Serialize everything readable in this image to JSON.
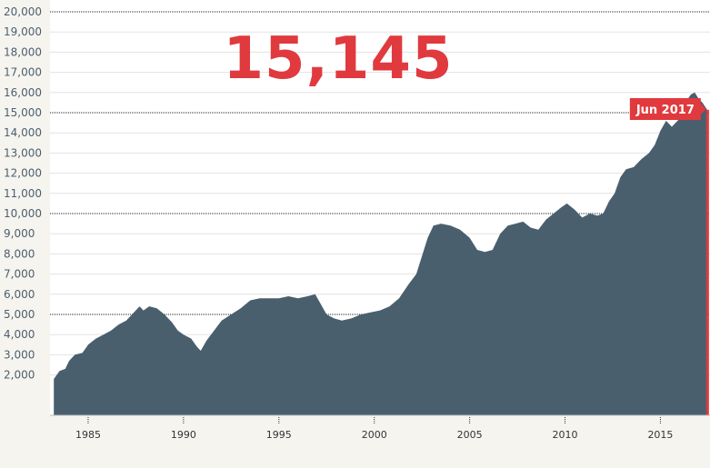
{
  "chart_data": {
    "type": "area",
    "headline_value": "15,145",
    "callout_label": "Jun 2017",
    "ylim": [
      0,
      20000
    ],
    "xlim": [
      1983,
      2017.6
    ],
    "y_ticks": [
      2000,
      3000,
      4000,
      5000,
      6000,
      7000,
      8000,
      9000,
      10000,
      11000,
      12000,
      13000,
      14000,
      15000,
      16000,
      17000,
      18000,
      19000,
      20000
    ],
    "y_tick_labels": [
      "2,000",
      "3,000",
      "4,000",
      "5,000",
      "6,000",
      "7,000",
      "8,000",
      "9,000",
      "10,000",
      "11,000",
      "12,000",
      "13,000",
      "14,000",
      "15,000",
      "16,000",
      "17,000",
      "18,000",
      "19,000",
      "20,000"
    ],
    "major_gridlines": [
      5000,
      10000,
      15000,
      20000
    ],
    "x_ticks": [
      1985,
      1990,
      1995,
      2000,
      2005,
      2010,
      2015
    ],
    "x_tick_labels": [
      "1985",
      "1990",
      "1995",
      "2000",
      "2005",
      "2010",
      "2015"
    ],
    "points": [
      [
        1983.2,
        1800
      ],
      [
        1983.5,
        2200
      ],
      [
        1983.8,
        2300
      ],
      [
        1984.0,
        2700
      ],
      [
        1984.3,
        3000
      ],
      [
        1984.7,
        3100
      ],
      [
        1985.0,
        3500
      ],
      [
        1985.4,
        3800
      ],
      [
        1985.8,
        4000
      ],
      [
        1986.2,
        4200
      ],
      [
        1986.6,
        4500
      ],
      [
        1987.0,
        4700
      ],
      [
        1987.4,
        5100
      ],
      [
        1987.7,
        5400
      ],
      [
        1987.9,
        5200
      ],
      [
        1988.2,
        5400
      ],
      [
        1988.6,
        5300
      ],
      [
        1989.0,
        5000
      ],
      [
        1989.4,
        4600
      ],
      [
        1989.7,
        4200
      ],
      [
        1990.0,
        4000
      ],
      [
        1990.4,
        3800
      ],
      [
        1990.7,
        3400
      ],
      [
        1990.9,
        3200
      ],
      [
        1991.2,
        3700
      ],
      [
        1991.6,
        4200
      ],
      [
        1992.0,
        4700
      ],
      [
        1992.5,
        5000
      ],
      [
        1993.0,
        5300
      ],
      [
        1993.5,
        5700
      ],
      [
        1994.0,
        5800
      ],
      [
        1994.5,
        5800
      ],
      [
        1995.0,
        5800
      ],
      [
        1995.5,
        5900
      ],
      [
        1996.0,
        5800
      ],
      [
        1996.5,
        5900
      ],
      [
        1996.9,
        6000
      ],
      [
        1997.2,
        5500
      ],
      [
        1997.5,
        5000
      ],
      [
        1997.9,
        4800
      ],
      [
        1998.3,
        4700
      ],
      [
        1998.8,
        4800
      ],
      [
        1999.3,
        5000
      ],
      [
        1999.8,
        5100
      ],
      [
        2000.3,
        5200
      ],
      [
        2000.8,
        5400
      ],
      [
        2001.3,
        5800
      ],
      [
        2001.8,
        6500
      ],
      [
        2002.2,
        7000
      ],
      [
        2002.5,
        7900
      ],
      [
        2002.8,
        8800
      ],
      [
        2003.1,
        9400
      ],
      [
        2003.5,
        9500
      ],
      [
        2004.0,
        9400
      ],
      [
        2004.5,
        9200
      ],
      [
        2005.0,
        8800
      ],
      [
        2005.4,
        8200
      ],
      [
        2005.8,
        8100
      ],
      [
        2006.2,
        8200
      ],
      [
        2006.6,
        9000
      ],
      [
        2007.0,
        9400
      ],
      [
        2007.4,
        9500
      ],
      [
        2007.8,
        9600
      ],
      [
        2008.2,
        9300
      ],
      [
        2008.6,
        9200
      ],
      [
        2009.0,
        9700
      ],
      [
        2009.4,
        10000
      ],
      [
        2009.8,
        10300
      ],
      [
        2010.1,
        10500
      ],
      [
        2010.5,
        10200
      ],
      [
        2010.9,
        9800
      ],
      [
        2011.3,
        10000
      ],
      [
        2011.7,
        9900
      ],
      [
        2012.0,
        10000
      ],
      [
        2012.3,
        10600
      ],
      [
        2012.6,
        11000
      ],
      [
        2012.9,
        11800
      ],
      [
        2013.2,
        12200
      ],
      [
        2013.6,
        12300
      ],
      [
        2014.0,
        12700
      ],
      [
        2014.4,
        13000
      ],
      [
        2014.7,
        13400
      ],
      [
        2015.0,
        14100
      ],
      [
        2015.3,
        14600
      ],
      [
        2015.6,
        14300
      ],
      [
        2016.0,
        14700
      ],
      [
        2016.3,
        15500
      ],
      [
        2016.6,
        15900
      ],
      [
        2016.8,
        16000
      ],
      [
        2017.0,
        15700
      ],
      [
        2017.2,
        15500
      ],
      [
        2017.45,
        15145
      ]
    ]
  }
}
